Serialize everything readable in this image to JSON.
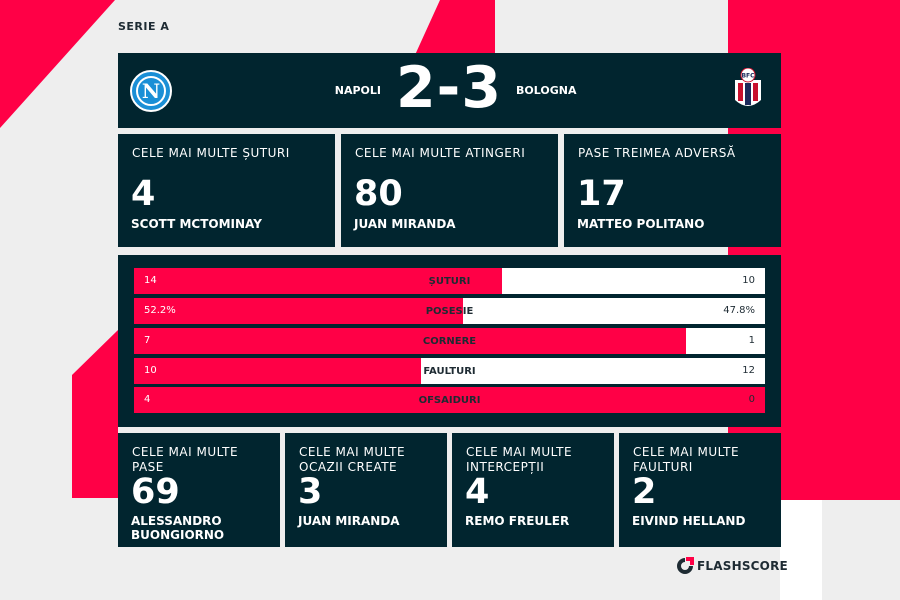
{
  "league": "SERIE A",
  "match": {
    "home_team": "NAPOLI",
    "away_team": "BOLOGNA",
    "score": "2-3",
    "home_crest_letter": "N",
    "away_crest_text": "BFC"
  },
  "top_cards": [
    {
      "label": "CELE MAI MULTE ȘUTURI",
      "value": "4",
      "player": "SCOTT MCTOMINAY"
    },
    {
      "label": "CELE MAI MULTE ATINGERI",
      "value": "80",
      "player": "JUAN MIRANDA"
    },
    {
      "label": "PASE TREIMEA ADVERSĂ",
      "value": "17",
      "player": "MATTEO POLITANO"
    }
  ],
  "stats": [
    {
      "name": "ȘUTURI",
      "home": "14",
      "away": "10",
      "home_share": 0.583
    },
    {
      "name": "POSESIE",
      "home": "52.2%",
      "away": "47.8%",
      "home_share": 0.522
    },
    {
      "name": "CORNERE",
      "home": "7",
      "away": "1",
      "home_share": 0.875
    },
    {
      "name": "FAULTURI",
      "home": "10",
      "away": "12",
      "home_share": 0.455
    },
    {
      "name": "OFSAIDURI",
      "home": "4",
      "away": "0",
      "home_share": 1.0
    }
  ],
  "bottom_cards": [
    {
      "label": "CELE MAI MULTE PASE",
      "value": "69",
      "player": "ALESSANDRO BUONGIORNO"
    },
    {
      "label": "CELE MAI MULTE OCAZII CREATE",
      "value": "3",
      "player": "JUAN MIRANDA"
    },
    {
      "label": "CELE MAI MULTE INTERCEPȚII",
      "value": "4",
      "player": "REMO FREULER"
    },
    {
      "label": "CELE MAI MULTE FAULTURI",
      "value": "2",
      "player": "EIVIND HELLAND"
    }
  ],
  "brand": "FLASHSCORE",
  "colors": {
    "accent": "#ff0046",
    "panel": "#01252f",
    "background": "#eeeeee"
  }
}
